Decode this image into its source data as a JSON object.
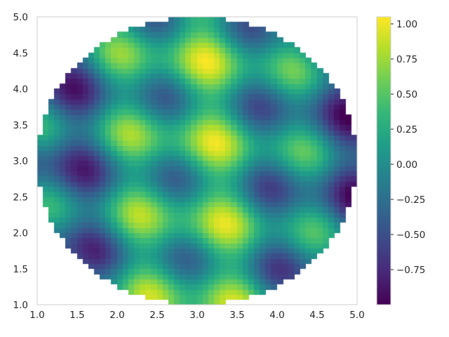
{
  "chart_data": {
    "type": "heatmap",
    "title": "",
    "xlabel": "",
    "ylabel": "",
    "xlim": [
      1.0,
      5.0
    ],
    "ylim": [
      1.0,
      5.0
    ],
    "x_ticks": [
      "1.0",
      "1.5",
      "2.0",
      "2.5",
      "3.0",
      "3.5",
      "4.0",
      "4.5",
      "5.0"
    ],
    "y_ticks": [
      "1.0",
      "1.5",
      "2.0",
      "2.5",
      "3.0",
      "3.5",
      "4.0",
      "4.5",
      "5.0"
    ],
    "colorbar": {
      "range": [
        -1.0,
        1.05
      ],
      "ticks": [
        "−0.75",
        "−0.50",
        "−0.25",
        "0.00",
        "0.25",
        "0.50",
        "0.75",
        "1.00"
      ],
      "colormap": "viridis"
    },
    "mask": "circle",
    "mask_center": [
      3.0,
      3.0
    ],
    "mask_radius": 2.0,
    "grid": false,
    "colors": {
      "frame": "#cccccc",
      "text": "#262626",
      "viridis": [
        "#440154",
        "#482878",
        "#3e4989",
        "#31688e",
        "#26828e",
        "#1f9e89",
        "#35b779",
        "#6ece58",
        "#b5de2b",
        "#fde725"
      ]
    }
  }
}
